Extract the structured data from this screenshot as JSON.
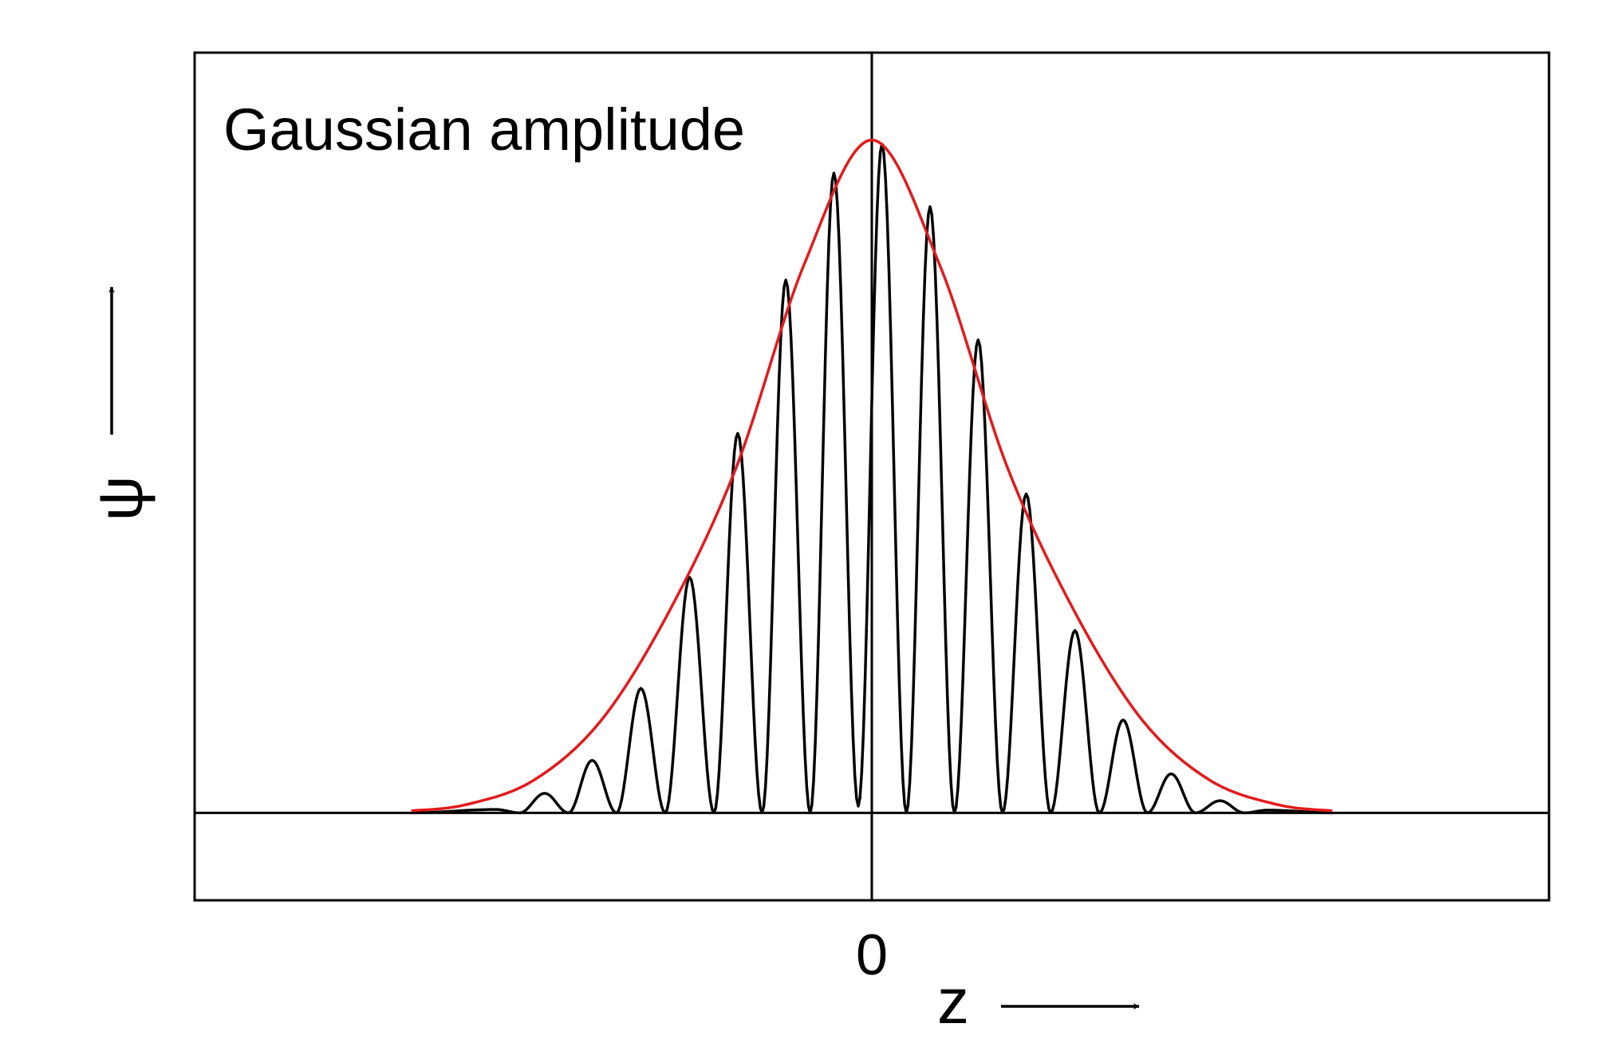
{
  "chart_data": {
    "type": "line",
    "annotation": "Gaussian amplitude",
    "xlabel": "z",
    "ylabel": "ψ",
    "x_ticks": [
      0
    ],
    "x_tick_labels": [
      "0"
    ],
    "xlim": [
      -1.0,
      1.0
    ],
    "ylim": [
      -0.13,
      1.13
    ],
    "grid": false,
    "reference_lines": {
      "x": 0,
      "y": 0
    },
    "series": [
      {
        "kind": "envelope",
        "color": "#e31a1c",
        "x": [
          -0.68,
          -0.6,
          -0.5,
          -0.4,
          -0.3,
          -0.2,
          -0.1,
          0,
          0.1,
          0.2,
          0.3,
          0.4,
          0.5,
          0.6,
          0.68
        ],
        "y": [
          0.003,
          0.012,
          0.048,
          0.137,
          0.298,
          0.514,
          0.815,
          1.0,
          0.815,
          0.514,
          0.298,
          0.137,
          0.048,
          0.012,
          0.003
        ]
      },
      {
        "kind": "oscillation",
        "color": "#000000",
        "peak_x": [
          -0.555,
          -0.483,
          -0.413,
          -0.341,
          -0.269,
          -0.198,
          -0.127,
          -0.056,
          0.015,
          0.086,
          0.157,
          0.228,
          0.3,
          0.371,
          0.442,
          0.514,
          0.585
        ],
        "peak_y": [
          0.005,
          0.029,
          0.078,
          0.185,
          0.35,
          0.564,
          0.792,
          0.951,
          0.994,
          0.901,
          0.703,
          0.474,
          0.271,
          0.138,
          0.058,
          0.018,
          0.004
        ],
        "trough_x": [
          -0.52,
          -0.448,
          -0.377,
          -0.305,
          -0.233,
          -0.162,
          -0.091,
          -0.02,
          0.051,
          0.122,
          0.193,
          0.264,
          0.336,
          0.407,
          0.478,
          0.55
        ],
        "trough_y": [
          0,
          0,
          0,
          0,
          0,
          0,
          0,
          0.01,
          0,
          0,
          0,
          0,
          0,
          0,
          0,
          0
        ]
      }
    ]
  }
}
